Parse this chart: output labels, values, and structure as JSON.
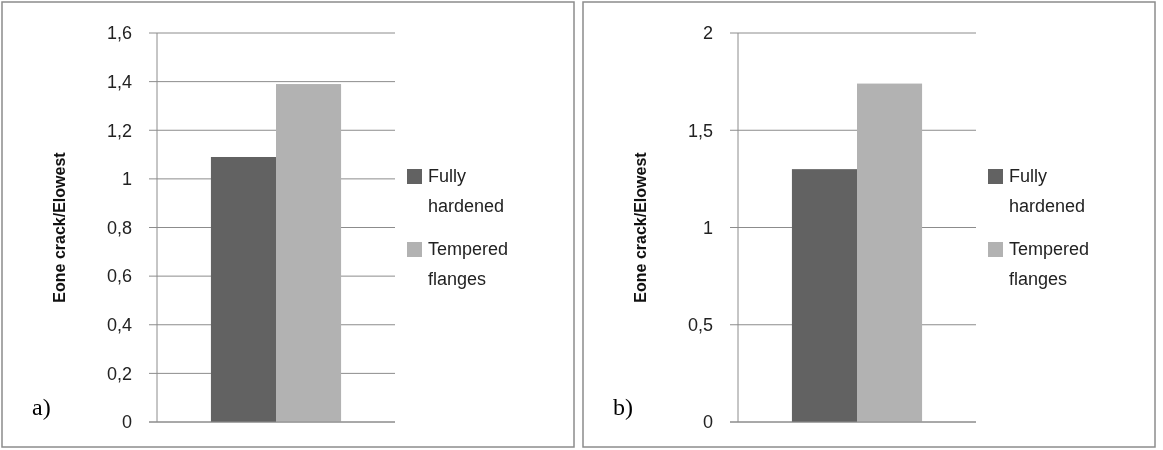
{
  "chart_data": [
    {
      "type": "bar",
      "ylabel": "Eone crack/Elowest",
      "categories": [
        null
      ],
      "series": [
        {
          "name": "Fully hardened",
          "color": "#626262",
          "values": [
            1.09
          ]
        },
        {
          "name": "Tempered flanges",
          "color": "#b2b2b2",
          "values": [
            1.39
          ]
        }
      ],
      "ylim": [
        0,
        1.6
      ],
      "yticks": [
        0,
        {
          "value": 0.2,
          "label": "0,2"
        },
        {
          "value": 0.4,
          "label": "0,4"
        },
        {
          "value": 0.6,
          "label": "0,6"
        },
        {
          "value": 0.8,
          "label": "0,8"
        },
        1,
        {
          "value": 1.2,
          "label": "1,2"
        },
        {
          "value": 1.4,
          "label": "1,4"
        },
        {
          "value": 1.6,
          "label": "1,6"
        }
      ],
      "grid": "y",
      "legend": "right",
      "annotations": [
        "a)"
      ]
    },
    {
      "type": "bar",
      "ylabel": "Eone crack/Elowest",
      "categories": [
        null
      ],
      "series": [
        {
          "name": "Fully hardened",
          "color": "#626262",
          "values": [
            1.3
          ]
        },
        {
          "name": "Tempered flanges",
          "color": "#b2b2b2",
          "values": [
            1.74
          ]
        }
      ],
      "ylim": [
        0,
        2
      ],
      "yticks": [
        0,
        {
          "value": 0.5,
          "label": "0,5"
        },
        1,
        {
          "value": 1.5,
          "label": "1,5"
        },
        2
      ],
      "grid": "y",
      "legend": "right",
      "annotations": [
        "b)"
      ]
    }
  ]
}
